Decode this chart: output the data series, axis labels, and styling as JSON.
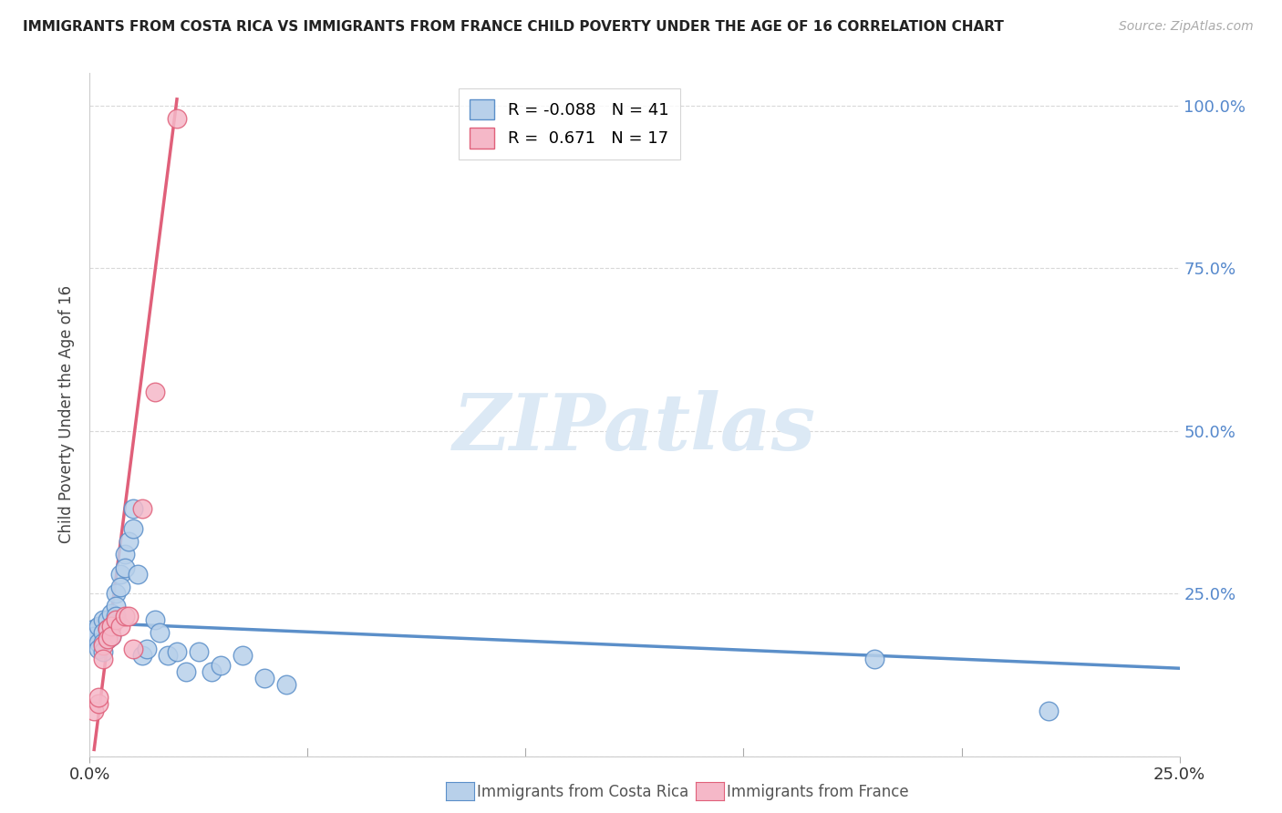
{
  "title": "IMMIGRANTS FROM COSTA RICA VS IMMIGRANTS FROM FRANCE CHILD POVERTY UNDER THE AGE OF 16 CORRELATION CHART",
  "source": "Source: ZipAtlas.com",
  "ylabel": "Child Poverty Under the Age of 16",
  "xlim": [
    0.0,
    0.25
  ],
  "ylim": [
    0.0,
    1.05
  ],
  "ytick_values": [
    0.0,
    0.25,
    0.5,
    0.75,
    1.0
  ],
  "xtick_values": [
    0.0,
    0.25
  ],
  "xtick_labels": [
    "0.0%",
    "25.0%"
  ],
  "costa_rica_color": "#b8d0ea",
  "france_color": "#f5b8c8",
  "costa_rica_line_color": "#5b8fc9",
  "france_line_color": "#e0607a",
  "watermark_text": "ZIPatlas",
  "watermark_color": "#dce9f5",
  "costa_rica_R": -0.088,
  "costa_rica_N": 41,
  "france_R": 0.671,
  "france_N": 17,
  "costa_rica_points_x": [
    0.001,
    0.001,
    0.002,
    0.002,
    0.002,
    0.003,
    0.003,
    0.003,
    0.003,
    0.004,
    0.004,
    0.004,
    0.005,
    0.005,
    0.005,
    0.006,
    0.006,
    0.006,
    0.007,
    0.007,
    0.008,
    0.008,
    0.009,
    0.01,
    0.01,
    0.011,
    0.012,
    0.013,
    0.015,
    0.016,
    0.018,
    0.02,
    0.022,
    0.025,
    0.028,
    0.03,
    0.035,
    0.04,
    0.045,
    0.18,
    0.22
  ],
  "costa_rica_points_y": [
    0.195,
    0.185,
    0.2,
    0.175,
    0.165,
    0.21,
    0.19,
    0.175,
    0.16,
    0.21,
    0.195,
    0.18,
    0.22,
    0.2,
    0.185,
    0.25,
    0.23,
    0.215,
    0.28,
    0.26,
    0.31,
    0.29,
    0.33,
    0.38,
    0.35,
    0.28,
    0.155,
    0.165,
    0.21,
    0.19,
    0.155,
    0.16,
    0.13,
    0.16,
    0.13,
    0.14,
    0.155,
    0.12,
    0.11,
    0.15,
    0.07
  ],
  "france_points_x": [
    0.001,
    0.002,
    0.002,
    0.003,
    0.003,
    0.004,
    0.004,
    0.005,
    0.005,
    0.006,
    0.007,
    0.008,
    0.009,
    0.01,
    0.012,
    0.015,
    0.02
  ],
  "france_points_y": [
    0.07,
    0.08,
    0.09,
    0.17,
    0.15,
    0.195,
    0.18,
    0.2,
    0.185,
    0.21,
    0.2,
    0.215,
    0.215,
    0.165,
    0.38,
    0.56,
    0.98
  ],
  "cr_line_x": [
    0.0,
    0.25
  ],
  "cr_line_y": [
    0.205,
    0.135
  ],
  "fr_line_x": [
    0.001,
    0.02
  ],
  "fr_line_y": [
    0.01,
    1.01
  ]
}
